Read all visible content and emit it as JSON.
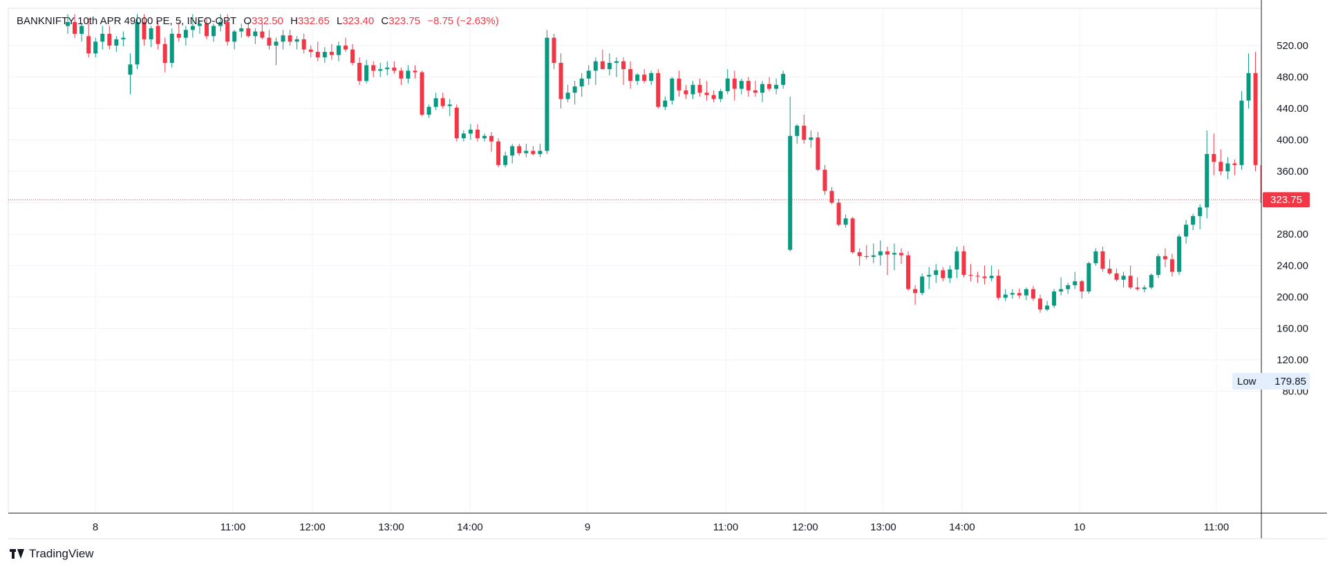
{
  "legend": {
    "symbol": "BANKNIFTY 10th APR 49000 PE, 5, INFO-OPT",
    "open_label": "O",
    "open": "332.50",
    "high_label": "H",
    "high": "332.65",
    "low_label": "L",
    "low": "323.40",
    "close_label": "C",
    "close": "323.75",
    "change": "−8.75 (−2.63%)"
  },
  "price_tag": {
    "value": "323.75",
    "color": "#f23645"
  },
  "low_marker": {
    "label": "Low",
    "value": "179.85"
  },
  "footer": {
    "brand": "TradingView",
    "logo_icon": "tradingview-logo-icon"
  },
  "colors": {
    "up": "#089981",
    "down": "#f23645",
    "grid": "#f0f3fa",
    "axis_text": "#131722"
  },
  "chart_data": {
    "type": "candlestick",
    "y_ticks": [
      "520.00",
      "480.00",
      "440.00",
      "400.00",
      "360.00",
      "320.00",
      "280.00",
      "240.00",
      "200.00",
      "160.00",
      "120.00",
      "80.00"
    ],
    "x_ticks": [
      "8",
      "11:00",
      "12:00",
      "13:00",
      "14:00",
      "9",
      "11:00",
      "12:00",
      "13:00",
      "14:00",
      "10",
      "11:00"
    ],
    "ylim": [
      45,
      560
    ],
    "grid": true,
    "last_price": 323.75,
    "candles": [
      {
        "o": 545,
        "h": 560,
        "l": 535,
        "c": 550
      },
      {
        "o": 550,
        "h": 560,
        "l": 530,
        "c": 535
      },
      {
        "o": 535,
        "h": 548,
        "l": 525,
        "c": 545
      },
      {
        "o": 532,
        "h": 555,
        "l": 505,
        "c": 510
      },
      {
        "o": 510,
        "h": 530,
        "l": 505,
        "c": 525
      },
      {
        "o": 525,
        "h": 545,
        "l": 515,
        "c": 535
      },
      {
        "o": 535,
        "h": 545,
        "l": 515,
        "c": 520
      },
      {
        "o": 520,
        "h": 532,
        "l": 512,
        "c": 528
      },
      {
        "o": 528,
        "h": 538,
        "l": 519,
        "c": 530
      },
      {
        "o": 483,
        "h": 510,
        "l": 458,
        "c": 496
      },
      {
        "o": 496,
        "h": 560,
        "l": 490,
        "c": 550
      },
      {
        "o": 550,
        "h": 560,
        "l": 520,
        "c": 528
      },
      {
        "o": 528,
        "h": 545,
        "l": 518,
        "c": 542
      },
      {
        "o": 545,
        "h": 550,
        "l": 515,
        "c": 522
      },
      {
        "o": 522,
        "h": 530,
        "l": 486,
        "c": 498
      },
      {
        "o": 498,
        "h": 542,
        "l": 492,
        "c": 535
      },
      {
        "o": 535,
        "h": 550,
        "l": 525,
        "c": 530
      },
      {
        "o": 530,
        "h": 545,
        "l": 520,
        "c": 540
      },
      {
        "o": 540,
        "h": 560,
        "l": 530,
        "c": 545
      },
      {
        "o": 545,
        "h": 552,
        "l": 535,
        "c": 548
      },
      {
        "o": 548,
        "h": 555,
        "l": 528,
        "c": 532
      },
      {
        "o": 532,
        "h": 548,
        "l": 525,
        "c": 545
      },
      {
        "o": 545,
        "h": 560,
        "l": 538,
        "c": 550
      },
      {
        "o": 550,
        "h": 560,
        "l": 520,
        "c": 525
      },
      {
        "o": 525,
        "h": 540,
        "l": 515,
        "c": 538
      },
      {
        "o": 538,
        "h": 548,
        "l": 530,
        "c": 542
      },
      {
        "o": 542,
        "h": 550,
        "l": 530,
        "c": 532
      },
      {
        "o": 532,
        "h": 542,
        "l": 522,
        "c": 538
      },
      {
        "o": 538,
        "h": 548,
        "l": 528,
        "c": 530
      },
      {
        "o": 530,
        "h": 540,
        "l": 515,
        "c": 520
      },
      {
        "o": 520,
        "h": 530,
        "l": 495,
        "c": 525
      },
      {
        "o": 525,
        "h": 540,
        "l": 515,
        "c": 533
      },
      {
        "o": 533,
        "h": 540,
        "l": 520,
        "c": 525
      },
      {
        "o": 525,
        "h": 532,
        "l": 515,
        "c": 528
      },
      {
        "o": 528,
        "h": 535,
        "l": 510,
        "c": 515
      },
      {
        "o": 515,
        "h": 520,
        "l": 505,
        "c": 512
      },
      {
        "o": 512,
        "h": 525,
        "l": 500,
        "c": 505
      },
      {
        "o": 505,
        "h": 518,
        "l": 498,
        "c": 512
      },
      {
        "o": 512,
        "h": 522,
        "l": 502,
        "c": 508
      },
      {
        "o": 508,
        "h": 525,
        "l": 500,
        "c": 520
      },
      {
        "o": 520,
        "h": 530,
        "l": 512,
        "c": 515
      },
      {
        "o": 515,
        "h": 522,
        "l": 495,
        "c": 498
      },
      {
        "o": 498,
        "h": 505,
        "l": 470,
        "c": 475
      },
      {
        "o": 475,
        "h": 502,
        "l": 472,
        "c": 495
      },
      {
        "o": 495,
        "h": 500,
        "l": 480,
        "c": 488
      },
      {
        "o": 488,
        "h": 498,
        "l": 480,
        "c": 490
      },
      {
        "o": 490,
        "h": 500,
        "l": 482,
        "c": 492
      },
      {
        "o": 492,
        "h": 500,
        "l": 484,
        "c": 488
      },
      {
        "o": 488,
        "h": 492,
        "l": 470,
        "c": 478
      },
      {
        "o": 478,
        "h": 495,
        "l": 472,
        "c": 488
      },
      {
        "o": 488,
        "h": 495,
        "l": 478,
        "c": 486
      },
      {
        "o": 486,
        "h": 488,
        "l": 430,
        "c": 432
      },
      {
        "o": 432,
        "h": 445,
        "l": 428,
        "c": 442
      },
      {
        "o": 442,
        "h": 460,
        "l": 438,
        "c": 453
      },
      {
        "o": 453,
        "h": 460,
        "l": 440,
        "c": 443
      },
      {
        "o": 443,
        "h": 452,
        "l": 430,
        "c": 445
      },
      {
        "o": 441,
        "h": 445,
        "l": 398,
        "c": 402
      },
      {
        "o": 402,
        "h": 412,
        "l": 398,
        "c": 408
      },
      {
        "o": 408,
        "h": 420,
        "l": 400,
        "c": 413
      },
      {
        "o": 413,
        "h": 420,
        "l": 398,
        "c": 402
      },
      {
        "o": 402,
        "h": 408,
        "l": 398,
        "c": 405
      },
      {
        "o": 405,
        "h": 410,
        "l": 385,
        "c": 398
      },
      {
        "o": 398,
        "h": 402,
        "l": 365,
        "c": 368
      },
      {
        "o": 368,
        "h": 385,
        "l": 365,
        "c": 380
      },
      {
        "o": 380,
        "h": 395,
        "l": 370,
        "c": 392
      },
      {
        "o": 392,
        "h": 395,
        "l": 380,
        "c": 383
      },
      {
        "o": 383,
        "h": 395,
        "l": 378,
        "c": 386
      },
      {
        "o": 386,
        "h": 392,
        "l": 380,
        "c": 382
      },
      {
        "o": 382,
        "h": 395,
        "l": 378,
        "c": 386
      },
      {
        "o": 386,
        "h": 540,
        "l": 382,
        "c": 530
      },
      {
        "o": 530,
        "h": 535,
        "l": 490,
        "c": 498
      },
      {
        "o": 498,
        "h": 510,
        "l": 440,
        "c": 452
      },
      {
        "o": 452,
        "h": 470,
        "l": 448,
        "c": 460
      },
      {
        "o": 460,
        "h": 475,
        "l": 445,
        "c": 468
      },
      {
        "o": 468,
        "h": 485,
        "l": 455,
        "c": 478
      },
      {
        "o": 478,
        "h": 495,
        "l": 470,
        "c": 488
      },
      {
        "o": 488,
        "h": 505,
        "l": 470,
        "c": 500
      },
      {
        "o": 500,
        "h": 515,
        "l": 490,
        "c": 490
      },
      {
        "o": 490,
        "h": 510,
        "l": 482,
        "c": 498
      },
      {
        "o": 498,
        "h": 505,
        "l": 480,
        "c": 500
      },
      {
        "o": 500,
        "h": 505,
        "l": 470,
        "c": 490
      },
      {
        "o": 490,
        "h": 500,
        "l": 465,
        "c": 475
      },
      {
        "o": 475,
        "h": 485,
        "l": 470,
        "c": 483
      },
      {
        "o": 483,
        "h": 490,
        "l": 472,
        "c": 475
      },
      {
        "o": 475,
        "h": 488,
        "l": 470,
        "c": 485
      },
      {
        "o": 485,
        "h": 490,
        "l": 440,
        "c": 442
      },
      {
        "o": 442,
        "h": 455,
        "l": 438,
        "c": 450
      },
      {
        "o": 450,
        "h": 480,
        "l": 445,
        "c": 478
      },
      {
        "o": 478,
        "h": 488,
        "l": 455,
        "c": 463
      },
      {
        "o": 463,
        "h": 470,
        "l": 452,
        "c": 458
      },
      {
        "o": 458,
        "h": 475,
        "l": 452,
        "c": 470
      },
      {
        "o": 470,
        "h": 478,
        "l": 455,
        "c": 460
      },
      {
        "o": 460,
        "h": 475,
        "l": 450,
        "c": 457
      },
      {
        "o": 457,
        "h": 463,
        "l": 448,
        "c": 452
      },
      {
        "o": 452,
        "h": 465,
        "l": 448,
        "c": 462
      },
      {
        "o": 462,
        "h": 490,
        "l": 458,
        "c": 478
      },
      {
        "o": 478,
        "h": 488,
        "l": 450,
        "c": 465
      },
      {
        "o": 465,
        "h": 478,
        "l": 458,
        "c": 475
      },
      {
        "o": 475,
        "h": 480,
        "l": 455,
        "c": 463
      },
      {
        "o": 463,
        "h": 475,
        "l": 455,
        "c": 460
      },
      {
        "o": 460,
        "h": 475,
        "l": 448,
        "c": 471
      },
      {
        "o": 471,
        "h": 480,
        "l": 462,
        "c": 465
      },
      {
        "o": 465,
        "h": 478,
        "l": 458,
        "c": 470
      },
      {
        "o": 470,
        "h": 488,
        "l": 465,
        "c": 484
      },
      {
        "o": 260,
        "h": 455,
        "l": 258,
        "c": 405
      },
      {
        "o": 405,
        "h": 420,
        "l": 395,
        "c": 418
      },
      {
        "o": 418,
        "h": 432,
        "l": 395,
        "c": 400
      },
      {
        "o": 400,
        "h": 412,
        "l": 390,
        "c": 403
      },
      {
        "o": 403,
        "h": 410,
        "l": 360,
        "c": 362
      },
      {
        "o": 362,
        "h": 368,
        "l": 330,
        "c": 335
      },
      {
        "o": 335,
        "h": 340,
        "l": 318,
        "c": 320
      },
      {
        "o": 320,
        "h": 325,
        "l": 290,
        "c": 292
      },
      {
        "o": 292,
        "h": 305,
        "l": 288,
        "c": 300
      },
      {
        "o": 300,
        "h": 302,
        "l": 255,
        "c": 257
      },
      {
        "o": 257,
        "h": 262,
        "l": 240,
        "c": 252
      },
      {
        "o": 252,
        "h": 266,
        "l": 248,
        "c": 251
      },
      {
        "o": 251,
        "h": 268,
        "l": 243,
        "c": 253
      },
      {
        "o": 253,
        "h": 272,
        "l": 240,
        "c": 258
      },
      {
        "o": 258,
        "h": 264,
        "l": 228,
        "c": 254
      },
      {
        "o": 254,
        "h": 268,
        "l": 234,
        "c": 256
      },
      {
        "o": 256,
        "h": 262,
        "l": 242,
        "c": 253
      },
      {
        "o": 253,
        "h": 258,
        "l": 208,
        "c": 210
      },
      {
        "o": 210,
        "h": 215,
        "l": 190,
        "c": 205
      },
      {
        "o": 205,
        "h": 230,
        "l": 202,
        "c": 226
      },
      {
        "o": 226,
        "h": 238,
        "l": 210,
        "c": 228
      },
      {
        "o": 228,
        "h": 242,
        "l": 218,
        "c": 234
      },
      {
        "o": 234,
        "h": 238,
        "l": 220,
        "c": 224
      },
      {
        "o": 224,
        "h": 240,
        "l": 218,
        "c": 235
      },
      {
        "o": 235,
        "h": 264,
        "l": 224,
        "c": 258
      },
      {
        "o": 258,
        "h": 265,
        "l": 225,
        "c": 228
      },
      {
        "o": 228,
        "h": 242,
        "l": 220,
        "c": 227
      },
      {
        "o": 227,
        "h": 232,
        "l": 218,
        "c": 226
      },
      {
        "o": 226,
        "h": 240,
        "l": 216,
        "c": 224
      },
      {
        "o": 224,
        "h": 240,
        "l": 220,
        "c": 227
      },
      {
        "o": 227,
        "h": 235,
        "l": 196,
        "c": 199
      },
      {
        "o": 199,
        "h": 210,
        "l": 195,
        "c": 203
      },
      {
        "o": 203,
        "h": 210,
        "l": 198,
        "c": 205
      },
      {
        "o": 205,
        "h": 211,
        "l": 198,
        "c": 202
      },
      {
        "o": 202,
        "h": 212,
        "l": 196,
        "c": 210
      },
      {
        "o": 210,
        "h": 214,
        "l": 195,
        "c": 198
      },
      {
        "o": 198,
        "h": 203,
        "l": 180,
        "c": 184
      },
      {
        "o": 184,
        "h": 195,
        "l": 182,
        "c": 189
      },
      {
        "o": 189,
        "h": 210,
        "l": 186,
        "c": 207
      },
      {
        "o": 207,
        "h": 225,
        "l": 202,
        "c": 210
      },
      {
        "o": 210,
        "h": 218,
        "l": 204,
        "c": 215
      },
      {
        "o": 215,
        "h": 232,
        "l": 210,
        "c": 220
      },
      {
        "o": 220,
        "h": 222,
        "l": 198,
        "c": 207
      },
      {
        "o": 207,
        "h": 245,
        "l": 204,
        "c": 243
      },
      {
        "o": 243,
        "h": 262,
        "l": 240,
        "c": 258
      },
      {
        "o": 258,
        "h": 264,
        "l": 232,
        "c": 236
      },
      {
        "o": 236,
        "h": 248,
        "l": 228,
        "c": 230
      },
      {
        "o": 230,
        "h": 236,
        "l": 220,
        "c": 222
      },
      {
        "o": 222,
        "h": 232,
        "l": 212,
        "c": 227
      },
      {
        "o": 227,
        "h": 240,
        "l": 210,
        "c": 212
      },
      {
        "o": 212,
        "h": 225,
        "l": 208,
        "c": 210
      },
      {
        "o": 210,
        "h": 215,
        "l": 206,
        "c": 212
      },
      {
        "o": 212,
        "h": 230,
        "l": 210,
        "c": 228
      },
      {
        "o": 228,
        "h": 255,
        "l": 224,
        "c": 252
      },
      {
        "o": 252,
        "h": 262,
        "l": 238,
        "c": 248
      },
      {
        "o": 248,
        "h": 255,
        "l": 226,
        "c": 232
      },
      {
        "o": 232,
        "h": 280,
        "l": 228,
        "c": 277
      },
      {
        "o": 277,
        "h": 298,
        "l": 268,
        "c": 292
      },
      {
        "o": 292,
        "h": 306,
        "l": 285,
        "c": 303
      },
      {
        "o": 303,
        "h": 318,
        "l": 286,
        "c": 314
      },
      {
        "o": 314,
        "h": 412,
        "l": 300,
        "c": 382
      },
      {
        "o": 382,
        "h": 408,
        "l": 355,
        "c": 372
      },
      {
        "o": 372,
        "h": 388,
        "l": 355,
        "c": 360
      },
      {
        "o": 360,
        "h": 378,
        "l": 350,
        "c": 370
      },
      {
        "o": 370,
        "h": 375,
        "l": 355,
        "c": 368
      },
      {
        "o": 368,
        "h": 462,
        "l": 362,
        "c": 450
      },
      {
        "o": 450,
        "h": 510,
        "l": 440,
        "c": 485
      },
      {
        "o": 485,
        "h": 512,
        "l": 360,
        "c": 368
      },
      {
        "o": 368,
        "h": 372,
        "l": 300,
        "c": 320
      },
      {
        "o": 320,
        "h": 350,
        "l": 318,
        "c": 330
      },
      {
        "o": 330,
        "h": 348,
        "l": 315,
        "c": 338
      },
      {
        "o": 338,
        "h": 352,
        "l": 325,
        "c": 345
      },
      {
        "o": 345,
        "h": 380,
        "l": 325,
        "c": 336
      },
      {
        "o": 336,
        "h": 345,
        "l": 310,
        "c": 318
      },
      {
        "o": 318,
        "h": 352,
        "l": 310,
        "c": 348
      },
      {
        "o": 348,
        "h": 356,
        "l": 325,
        "c": 325
      },
      {
        "o": 325,
        "h": 368,
        "l": 322,
        "c": 344
      },
      {
        "o": 344,
        "h": 360,
        "l": 338,
        "c": 352
      },
      {
        "o": 352,
        "h": 362,
        "l": 338,
        "c": 342
      },
      {
        "o": 342,
        "h": 348,
        "l": 325,
        "c": 332
      },
      {
        "o": 332,
        "h": 336,
        "l": 320,
        "c": 330
      },
      {
        "o": 332.5,
        "h": 332.65,
        "l": 323.4,
        "c": 323.75
      }
    ]
  }
}
